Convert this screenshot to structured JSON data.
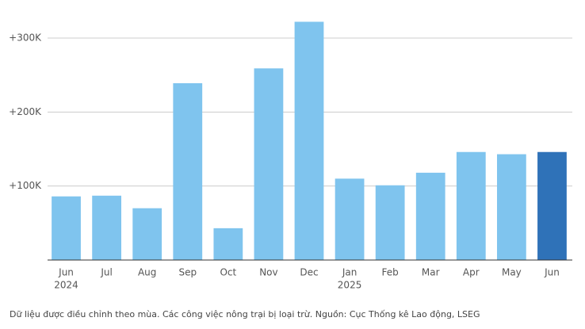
{
  "chart_data": {
    "type": "bar",
    "categories": [
      "Jun",
      "Jul",
      "Aug",
      "Sep",
      "Oct",
      "Nov",
      "Dec",
      "Jan",
      "Feb",
      "Mar",
      "Apr",
      "May",
      "Jun"
    ],
    "sublabels": [
      "2024",
      null,
      null,
      null,
      null,
      null,
      null,
      "2025",
      null,
      null,
      null,
      null,
      null
    ],
    "values": [
      86,
      87,
      70,
      239,
      43,
      259,
      322,
      110,
      101,
      118,
      146,
      143,
      146
    ],
    "colors": [
      "#7fc4ee",
      "#7fc4ee",
      "#7fc4ee",
      "#7fc4ee",
      "#7fc4ee",
      "#7fc4ee",
      "#7fc4ee",
      "#7fc4ee",
      "#7fc4ee",
      "#7fc4ee",
      "#7fc4ee",
      "#7fc4ee",
      "#2f72b8"
    ],
    "ylim": [
      0,
      330
    ],
    "yticks": [
      {
        "value": 100,
        "label": "+100K"
      },
      {
        "value": 200,
        "label": "+200K"
      },
      {
        "value": 300,
        "label": "+300K"
      }
    ],
    "grid": true,
    "note": "Dữ liệu được điều chỉnh theo mùa. Các công việc nông trại bị loại trừ. Nguồn: Cục Thống kê Lao động, LSEG"
  }
}
